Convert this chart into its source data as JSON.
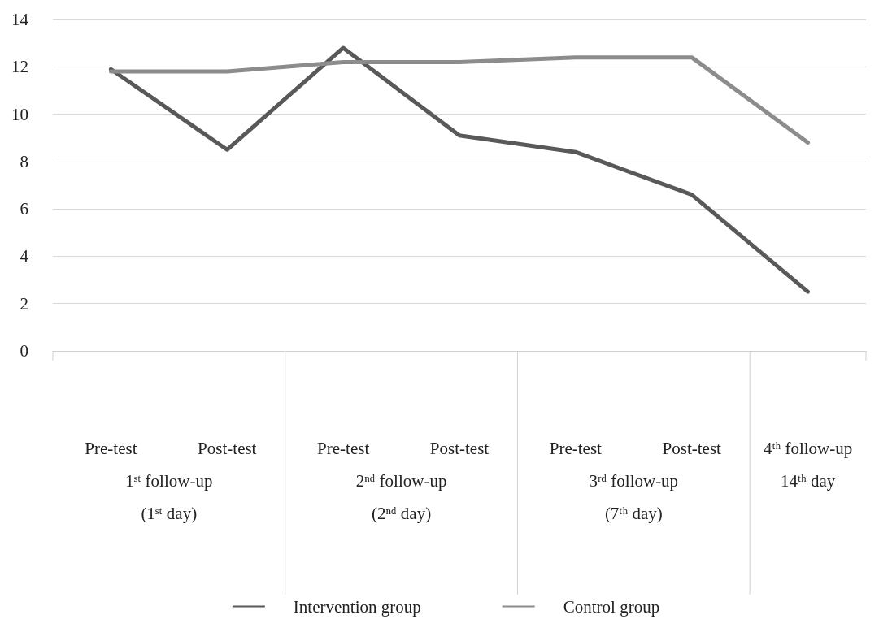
{
  "chart_data": {
    "type": "line",
    "categories": [
      "Pre-test",
      "Post-test",
      "Pre-test",
      "Post-test",
      "Pre-test",
      "Post-test",
      "4ᵗʰ follow-up\n14ᵗʰ day"
    ],
    "series": [
      {
        "name": "Intervention group",
        "color": "#595959",
        "values": [
          11.9,
          8.5,
          12.8,
          9.1,
          8.4,
          6.6,
          2.5
        ]
      },
      {
        "name": "Control group",
        "color": "#8c8c8c",
        "values": [
          11.8,
          11.8,
          12.2,
          12.2,
          12.4,
          12.4,
          8.8
        ]
      }
    ],
    "annotations": [
      "1ˢᵗ follow-up\n(1ˢᵗ day)",
      "2ⁿᵈ follow-up\n(2ⁿᵈ day)",
      "3ʳᵈ follow-up\n(7ᵗʰ day)"
    ],
    "ylim": [
      0,
      14
    ],
    "yticks": [
      0,
      2,
      4,
      6,
      8,
      10,
      12,
      14
    ],
    "grid": "y",
    "legend": "bottom",
    "marker": "none",
    "line_style": "solid"
  }
}
